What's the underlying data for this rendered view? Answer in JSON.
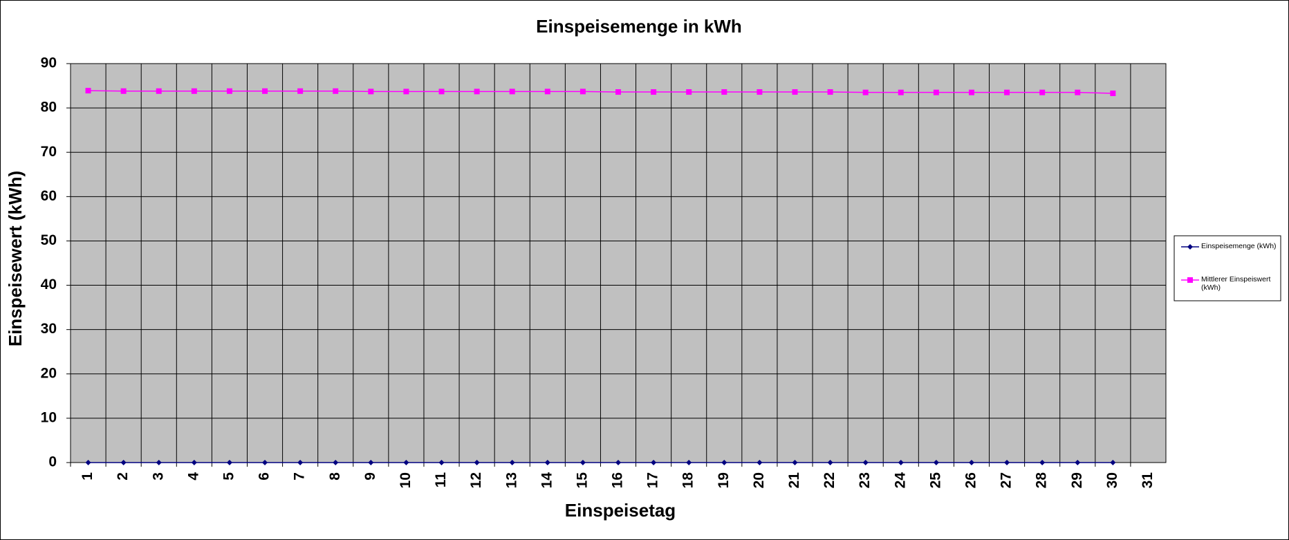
{
  "chart_data": {
    "type": "line",
    "title": "Einspeisemenge in kWh",
    "x_label": "Einspeisetag",
    "y_label": "Einspeisewert  (kWh)",
    "categories": [
      "1",
      "2",
      "3",
      "4",
      "5",
      "6",
      "7",
      "8",
      "9",
      "10",
      "11",
      "12",
      "13",
      "14",
      "15",
      "16",
      "17",
      "18",
      "19",
      "20",
      "21",
      "22",
      "23",
      "24",
      "25",
      "26",
      "27",
      "28",
      "29",
      "30",
      "31"
    ],
    "series": [
      {
        "name": "Einspeisemenge (kWh)",
        "color": "#000080",
        "marker": "diamond",
        "values": [
          0,
          0,
          0,
          0,
          0,
          0,
          0,
          0,
          0,
          0,
          0,
          0,
          0,
          0,
          0,
          0,
          0,
          0,
          0,
          0,
          0,
          0,
          0,
          0,
          0,
          0,
          0,
          0,
          0,
          0,
          null
        ]
      },
      {
        "name": "Mittlerer Einspeiswert (kWh)",
        "color": "#ff00ff",
        "marker": "square",
        "values": [
          83.9,
          83.8,
          83.8,
          83.8,
          83.8,
          83.8,
          83.8,
          83.8,
          83.7,
          83.7,
          83.7,
          83.7,
          83.7,
          83.7,
          83.7,
          83.6,
          83.6,
          83.6,
          83.6,
          83.6,
          83.6,
          83.6,
          83.5,
          83.5,
          83.5,
          83.5,
          83.5,
          83.5,
          83.5,
          83.3,
          null
        ]
      }
    ],
    "ylim": [
      0,
      90
    ],
    "yticks": [
      0,
      10,
      20,
      30,
      40,
      50,
      60,
      70,
      80,
      90
    ],
    "grid": true,
    "plot_background": "#c0c0c0",
    "legend": "right"
  }
}
